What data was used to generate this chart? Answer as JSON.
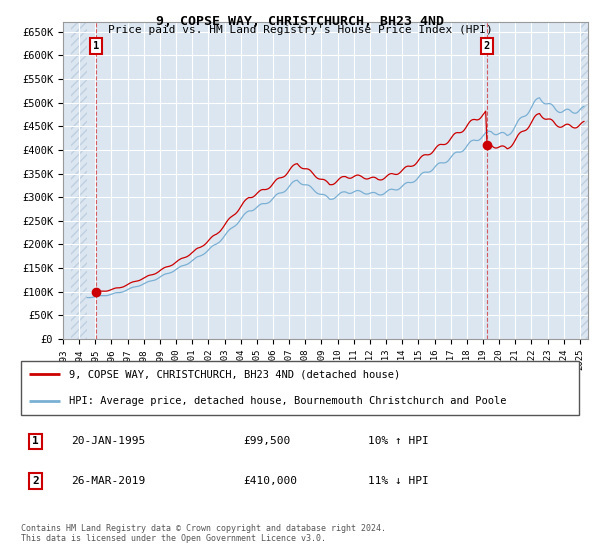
{
  "title": "9, COPSE WAY, CHRISTCHURCH, BH23 4ND",
  "subtitle": "Price paid vs. HM Land Registry's House Price Index (HPI)",
  "ylabel_ticks": [
    "£0",
    "£50K",
    "£100K",
    "£150K",
    "£200K",
    "£250K",
    "£300K",
    "£350K",
    "£400K",
    "£450K",
    "£500K",
    "£550K",
    "£600K",
    "£650K"
  ],
  "ytick_values": [
    0,
    50000,
    100000,
    150000,
    200000,
    250000,
    300000,
    350000,
    400000,
    450000,
    500000,
    550000,
    600000,
    650000
  ],
  "ylim": [
    0,
    670000
  ],
  "xlim_start": 1993.5,
  "xlim_end": 2025.5,
  "sale1_x": 1995.05,
  "sale1_y": 99500,
  "sale2_x": 2019.23,
  "sale2_y": 410000,
  "legend_line1": "9, COPSE WAY, CHRISTCHURCH, BH23 4ND (detached house)",
  "legend_line2": "HPI: Average price, detached house, Bournemouth Christchurch and Poole",
  "table_row1_date": "20-JAN-1995",
  "table_row1_price": "£99,500",
  "table_row1_hpi": "10% ↑ HPI",
  "table_row2_date": "26-MAR-2019",
  "table_row2_price": "£410,000",
  "table_row2_hpi": "11% ↓ HPI",
  "footer": "Contains HM Land Registry data © Crown copyright and database right 2024.\nThis data is licensed under the Open Government Licence v3.0.",
  "hpi_color": "#7ab0d4",
  "sale_color": "#cc0000",
  "bg_color": "#dce6f1",
  "grid_color": "#ffffff",
  "hatch_color": "#bfcfe0"
}
